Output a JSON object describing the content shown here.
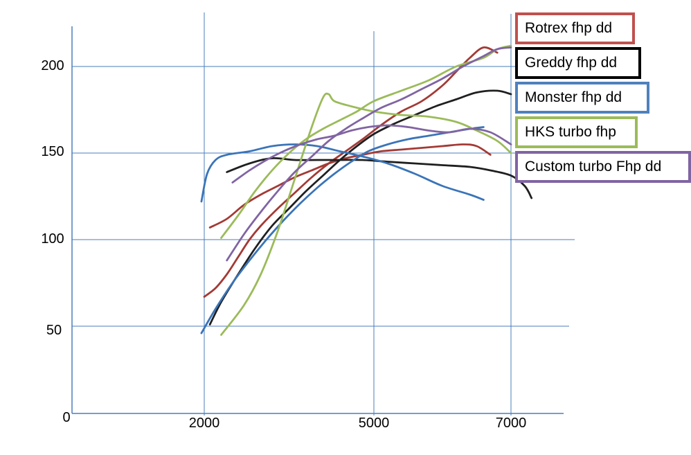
{
  "chart_data": {
    "type": "line",
    "x_ticks": [
      "2000",
      "5000",
      "7000"
    ],
    "y_ticks": [
      "0",
      "50",
      "100",
      "150",
      "200"
    ],
    "y_ticks_numeric": [
      0,
      50,
      100,
      150,
      200
    ],
    "grid": true,
    "legend_position": "right",
    "series": [
      {
        "name": "Rotrex fhp dd",
        "color": "#a33a35",
        "legend_border": "#c0504d",
        "curves": [
          [
            [
              2000,
              67
            ],
            [
              2200,
              72
            ],
            [
              2400,
              80
            ],
            [
              2600,
              90
            ],
            [
              2800,
              100
            ],
            [
              3000,
              108
            ],
            [
              3300,
              118
            ],
            [
              3600,
              127
            ],
            [
              3900,
              136
            ],
            [
              4200,
              144
            ],
            [
              4500,
              151
            ],
            [
              4800,
              158
            ],
            [
              5100,
              166
            ],
            [
              5400,
              174
            ],
            [
              5700,
              180
            ],
            [
              6000,
              189
            ],
            [
              6200,
              197
            ],
            [
              6400,
              205
            ],
            [
              6600,
              211
            ],
            [
              6800,
              208
            ]
          ],
          [
            [
              2100,
              107
            ],
            [
              2400,
              112
            ],
            [
              2700,
              120
            ],
            [
              3000,
              126
            ],
            [
              3300,
              131
            ],
            [
              3600,
              136
            ],
            [
              3900,
              140
            ],
            [
              4200,
              144
            ],
            [
              4500,
              147
            ],
            [
              4800,
              149
            ],
            [
              5100,
              151
            ],
            [
              5400,
              152
            ],
            [
              5700,
              153
            ],
            [
              6000,
              154
            ],
            [
              6300,
              155
            ],
            [
              6500,
              154
            ],
            [
              6700,
              149
            ]
          ]
        ]
      },
      {
        "name": "Greddy fhp dd",
        "color": "#1f1f1f",
        "legend_border": "#000000",
        "curves": [
          [
            [
              2100,
              51
            ],
            [
              2300,
              64
            ],
            [
              2600,
              80
            ],
            [
              2900,
              95
            ],
            [
              3200,
              108
            ],
            [
              3500,
              118
            ],
            [
              3800,
              128
            ],
            [
              4100,
              137
            ],
            [
              4400,
              146
            ],
            [
              4700,
              154
            ],
            [
              5000,
              161
            ],
            [
              5300,
              167
            ],
            [
              5600,
              172
            ],
            [
              5900,
              177
            ],
            [
              6200,
              181
            ],
            [
              6500,
              185
            ],
            [
              6800,
              186
            ],
            [
              7000,
              184
            ]
          ],
          [
            [
              2400,
              139
            ],
            [
              2800,
              144
            ],
            [
              3200,
              147
            ],
            [
              3600,
              146
            ],
            [
              4000,
              146
            ],
            [
              4400,
              146
            ],
            [
              4800,
              146
            ],
            [
              5200,
              145
            ],
            [
              5600,
              144
            ],
            [
              6000,
              143
            ],
            [
              6400,
              142
            ],
            [
              6700,
              140
            ],
            [
              7000,
              137
            ],
            [
              7200,
              131
            ],
            [
              7300,
              124
            ]
          ]
        ]
      },
      {
        "name": "Monster fhp dd",
        "color": "#3a74b8",
        "legend_border": "#4f81bd",
        "curves": [
          [
            [
              1950,
              122
            ],
            [
              2050,
              138
            ],
            [
              2200,
              146
            ],
            [
              2400,
              149
            ],
            [
              2800,
              151
            ],
            [
              3200,
              154
            ],
            [
              3600,
              155
            ],
            [
              4000,
              154
            ],
            [
              4400,
              151
            ],
            [
              4800,
              148
            ],
            [
              5200,
              144
            ],
            [
              5600,
              138
            ],
            [
              6000,
              131
            ],
            [
              6400,
              126
            ],
            [
              6600,
              123
            ]
          ],
          [
            [
              1950,
              46
            ],
            [
              2200,
              60
            ],
            [
              2500,
              75
            ],
            [
              2800,
              88
            ],
            [
              3100,
              100
            ],
            [
              3400,
              111
            ],
            [
              3700,
              121
            ],
            [
              4000,
              130
            ],
            [
              4300,
              138
            ],
            [
              4600,
              145
            ],
            [
              4900,
              151
            ],
            [
              5200,
              155
            ],
            [
              5500,
              158
            ],
            [
              5800,
              160
            ],
            [
              6100,
              162
            ],
            [
              6400,
              164
            ],
            [
              6600,
              165
            ]
          ]
        ]
      },
      {
        "name": "HKS turbo fhp",
        "color": "#9bbb59",
        "legend_border": "#9bbb59",
        "curves": [
          [
            [
              2300,
              45
            ],
            [
              2700,
              62
            ],
            [
              3000,
              80
            ],
            [
              3300,
              105
            ],
            [
              3600,
              135
            ],
            [
              3900,
              165
            ],
            [
              4100,
              182
            ],
            [
              4200,
              184
            ],
            [
              4300,
              180
            ],
            [
              4600,
              177
            ],
            [
              5000,
              174
            ],
            [
              5400,
              172
            ],
            [
              5800,
              171
            ],
            [
              6200,
              168
            ],
            [
              6500,
              163
            ],
            [
              6800,
              157
            ],
            [
              7000,
              150
            ]
          ],
          [
            [
              2300,
              101
            ],
            [
              2600,
              114
            ],
            [
              2900,
              128
            ],
            [
              3200,
              140
            ],
            [
              3500,
              150
            ],
            [
              3800,
              158
            ],
            [
              4100,
              164
            ],
            [
              4400,
              169
            ],
            [
              4700,
              174
            ],
            [
              5000,
              180
            ],
            [
              5400,
              186
            ],
            [
              5800,
              192
            ],
            [
              6200,
              200
            ],
            [
              6600,
              205
            ],
            [
              6800,
              210
            ],
            [
              7000,
              212
            ]
          ]
        ]
      },
      {
        "name": "Custom turbo Fhp dd",
        "color": "#8064a2",
        "legend_border": "#8064a2",
        "curves": [
          [
            [
              2400,
              88
            ],
            [
              2700,
              103
            ],
            [
              3000,
              116
            ],
            [
              3300,
              128
            ],
            [
              3600,
              139
            ],
            [
              3900,
              148
            ],
            [
              4200,
              157
            ],
            [
              4500,
              164
            ],
            [
              4800,
              170
            ],
            [
              5100,
              176
            ],
            [
              5400,
              181
            ],
            [
              5700,
              187
            ],
            [
              6000,
              193
            ],
            [
              6300,
              200
            ],
            [
              6600,
              206
            ],
            [
              6800,
              210
            ],
            [
              7000,
              211
            ]
          ],
          [
            [
              2500,
              133
            ],
            [
              2800,
              140
            ],
            [
              3100,
              146
            ],
            [
              3400,
              151
            ],
            [
              3700,
              155
            ],
            [
              4000,
              158
            ],
            [
              4300,
              160
            ],
            [
              4600,
              163
            ],
            [
              4900,
              165
            ],
            [
              5200,
              166
            ],
            [
              5500,
              165
            ],
            [
              5800,
              163
            ],
            [
              6100,
              162
            ],
            [
              6400,
              164
            ],
            [
              6700,
              162
            ],
            [
              7000,
              155
            ]
          ]
        ]
      }
    ]
  }
}
